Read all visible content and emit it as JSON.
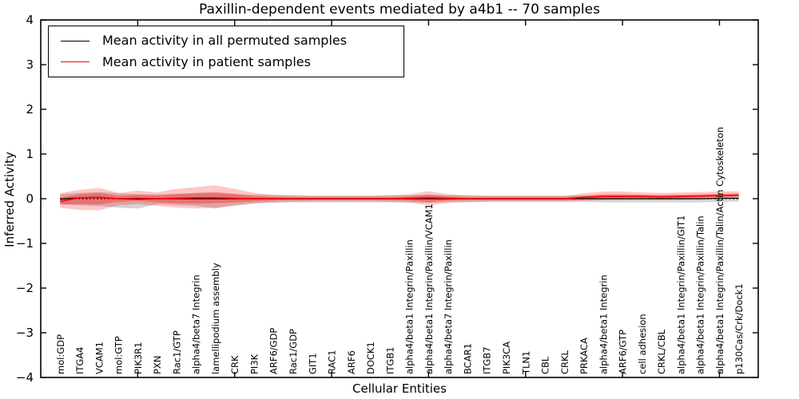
{
  "figure": {
    "title": "Paxillin-dependent events mediated by a4b1 -- 70 samples",
    "xlabel": "Cellular Entities",
    "ylabel": "Inferred Activity",
    "background": "#ffffff",
    "axes_color": "#000000"
  },
  "legend": {
    "items": [
      {
        "label": "Mean activity in all permuted samples",
        "color": "#000000"
      },
      {
        "label": "Mean activity in patient samples",
        "color": "#ff0000"
      }
    ]
  },
  "chart_data": {
    "type": "line",
    "title": "Paxillin-dependent events mediated by a4b1 -- 70 samples",
    "xlabel": "Cellular Entities",
    "ylabel": "Inferred Activity",
    "ylim": [
      -4,
      4
    ],
    "yticks": [
      4,
      3,
      2,
      1,
      0,
      -1,
      -2,
      -3,
      -4
    ],
    "ytick_labels": [
      "4",
      "3",
      "2",
      "1",
      "0",
      "−1",
      "−2",
      "−3",
      "−4"
    ],
    "grid": false,
    "legend_position": "upper left",
    "zero_line": {
      "y": 0,
      "style": "dotted",
      "color": "#000000"
    },
    "xtick_positions": [
      4,
      9,
      14,
      19,
      24,
      29,
      34
    ],
    "categories": [
      "mol:GDP",
      "ITGA4",
      "VCAM1",
      "mol:GTP",
      "PIK3R1",
      "PXN",
      "Rac1/GTP",
      "alpha4/beta7 Integrin",
      "lamellipodium assembly",
      "CRK",
      "PI3K",
      "ARF6/GDP",
      "Rac1/GDP",
      "GIT1",
      "RAC1",
      "ARF6",
      "DOCK1",
      "ITGB1",
      "alpha4/beta1 Integrin/Paxillin",
      "alpha4/beta1 Integrin/Paxillin/VCAM1",
      "alpha4/beta7 Integrin/Paxillin",
      "BCAR1",
      "ITGB7",
      "PIK3CA",
      "TLN1",
      "CBL",
      "CRKL",
      "PRKACA",
      "alpha4/beta1 Integrin",
      "ARF6/GTP",
      "cell adhesion",
      "CRKL/CBL",
      "alpha4/beta1 Integrin/Paxillin/GIT1",
      "alpha4/beta1 Integrin/Paxillin/Talin",
      "alpha4/beta1 Integrin/Paxillin/Talin/Actin Cytoskeleton",
      "p130Cas/Crk/Dock1"
    ],
    "series": [
      {
        "name": "Mean activity in all permuted samples",
        "color": "#000000",
        "values": [
          -0.01,
          0.02,
          0.03,
          0.0,
          -0.01,
          0.0,
          0.0,
          0.0,
          0.0,
          0.0,
          0.0,
          0.0,
          0.0,
          0.0,
          0.0,
          0.0,
          0.0,
          0.0,
          0.0,
          0.0,
          0.0,
          0.0,
          0.0,
          0.0,
          0.0,
          0.0,
          0.0,
          0.0,
          0.0,
          0.0,
          0.0,
          0.0,
          0.0,
          0.0,
          0.01,
          0.01
        ]
      },
      {
        "name": "Mean activity in patient samples",
        "color": "#ff0000",
        "values": [
          -0.06,
          0.02,
          0.03,
          0.0,
          0.01,
          0.0,
          0.01,
          0.02,
          0.02,
          0.01,
          0.0,
          0.0,
          0.0,
          0.0,
          0.0,
          0.0,
          0.0,
          0.0,
          0.01,
          0.02,
          0.01,
          0.0,
          0.0,
          0.0,
          0.0,
          0.0,
          0.0,
          0.03,
          0.05,
          0.05,
          0.05,
          0.04,
          0.05,
          0.06,
          0.07,
          0.08
        ]
      }
    ],
    "bands": [
      {
        "name": "permuted-spread",
        "color": "rgba(128,128,128,0.35)",
        "upper": [
          0.1,
          0.13,
          0.15,
          0.12,
          0.1,
          0.1,
          0.1,
          0.12,
          0.12,
          0.1,
          0.09,
          0.08,
          0.08,
          0.07,
          0.07,
          0.07,
          0.07,
          0.08,
          0.08,
          0.09,
          0.08,
          0.08,
          0.07,
          0.07,
          0.07,
          0.07,
          0.07,
          0.07,
          0.08,
          0.08,
          0.08,
          0.08,
          0.08,
          0.08,
          0.08,
          0.08
        ],
        "lower": [
          -0.12,
          -0.15,
          -0.16,
          -0.2,
          -0.22,
          -0.12,
          -0.14,
          -0.16,
          -0.22,
          -0.14,
          -0.1,
          -0.09,
          -0.08,
          -0.08,
          -0.08,
          -0.08,
          -0.08,
          -0.08,
          -0.08,
          -0.09,
          -0.08,
          -0.08,
          -0.07,
          -0.07,
          -0.07,
          -0.07,
          -0.07,
          -0.07,
          -0.08,
          -0.08,
          -0.08,
          -0.08,
          -0.08,
          -0.08,
          -0.07,
          -0.06
        ]
      },
      {
        "name": "patient-spread-outer",
        "color": "rgba(255,0,0,0.22)",
        "upper": [
          0.12,
          0.2,
          0.24,
          0.13,
          0.18,
          0.14,
          0.22,
          0.26,
          0.3,
          0.22,
          0.13,
          0.09,
          0.07,
          0.06,
          0.06,
          0.06,
          0.06,
          0.07,
          0.1,
          0.17,
          0.1,
          0.07,
          0.06,
          0.06,
          0.06,
          0.06,
          0.06,
          0.12,
          0.16,
          0.16,
          0.14,
          0.13,
          0.14,
          0.15,
          0.16,
          0.17
        ],
        "lower": [
          -0.2,
          -0.25,
          -0.26,
          -0.15,
          -0.12,
          -0.16,
          -0.2,
          -0.22,
          -0.2,
          -0.16,
          -0.11,
          -0.08,
          -0.07,
          -0.06,
          -0.06,
          -0.06,
          -0.06,
          -0.07,
          -0.09,
          -0.15,
          -0.09,
          -0.07,
          -0.06,
          -0.06,
          -0.06,
          -0.06,
          -0.06,
          -0.05,
          -0.03,
          -0.02,
          -0.02,
          -0.02,
          -0.02,
          -0.01,
          0.0,
          0.01
        ]
      },
      {
        "name": "patient-spread-inner",
        "color": "rgba(255,0,0,0.30)",
        "upper": [
          0.03,
          0.1,
          0.13,
          0.06,
          0.09,
          0.07,
          0.11,
          0.13,
          0.15,
          0.11,
          0.06,
          0.04,
          0.03,
          0.03,
          0.03,
          0.03,
          0.03,
          0.03,
          0.05,
          0.09,
          0.05,
          0.03,
          0.03,
          0.03,
          0.03,
          0.03,
          0.03,
          0.07,
          0.1,
          0.1,
          0.09,
          0.08,
          0.09,
          0.1,
          0.11,
          0.12
        ],
        "lower": [
          -0.13,
          -0.12,
          -0.13,
          -0.07,
          -0.05,
          -0.08,
          -0.1,
          -0.11,
          -0.1,
          -0.08,
          -0.06,
          -0.04,
          -0.03,
          -0.03,
          -0.03,
          -0.03,
          -0.03,
          -0.03,
          -0.04,
          -0.08,
          -0.04,
          -0.03,
          -0.03,
          -0.03,
          -0.03,
          -0.03,
          -0.03,
          -0.01,
          0.02,
          0.02,
          0.02,
          0.01,
          0.02,
          0.03,
          0.04,
          0.05
        ]
      }
    ]
  }
}
